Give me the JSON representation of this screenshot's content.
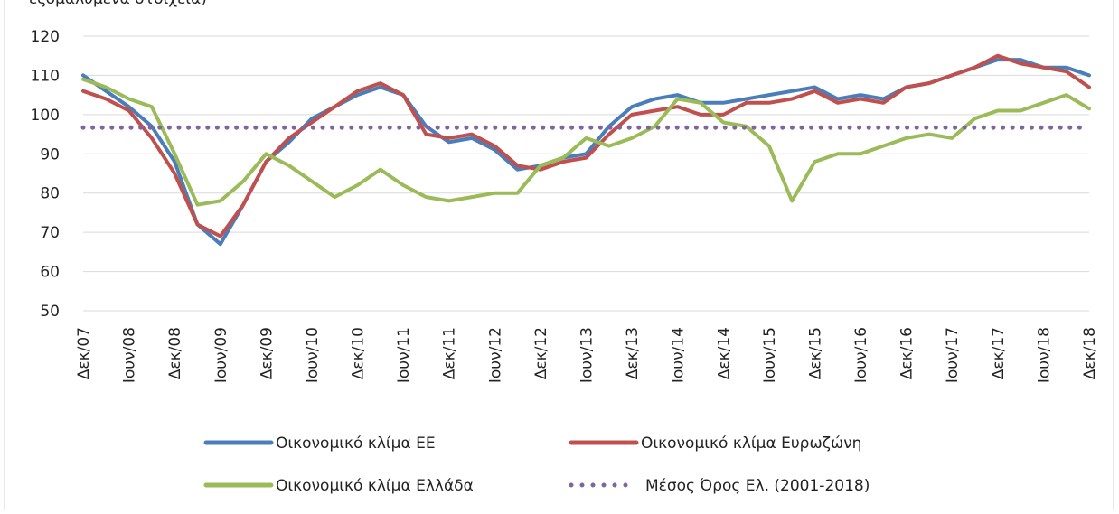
{
  "chart_data": {
    "type": "line",
    "title": "εξομαλυμένα στοιχεία)",
    "categories": [
      "Δεκ/07",
      null,
      "Ιουν/08",
      null,
      "Δεκ/08",
      null,
      "Ιουν/09",
      null,
      "Δεκ/09",
      null,
      "Ιουν/10",
      null,
      "Δεκ/10",
      null,
      "Ιουν/11",
      null,
      "Δεκ/11",
      null,
      "Ιουν/12",
      null,
      "Δεκ/12",
      null,
      "Ιουν/13",
      null,
      "Δεκ/13",
      null,
      "Ιουν/14",
      null,
      "Δεκ/14",
      null,
      "Ιουν/15",
      null,
      "Δεκ/15",
      null,
      "Ιουν/16",
      null,
      "Δεκ/16",
      null,
      "Ιουν/17",
      null,
      "Δεκ/17",
      null,
      "Ιουν/18",
      null,
      "Δεκ/18"
    ],
    "series": [
      {
        "name": "Οικονομικό κλίμα ΕΕ",
        "color": "#4a7ebb",
        "style": "solid",
        "values": [
          110,
          106,
          102,
          97,
          88,
          72,
          67,
          77,
          88,
          93,
          99,
          102,
          105,
          107,
          105,
          97,
          93,
          94,
          91,
          86,
          87,
          89,
          90,
          97,
          102,
          104,
          105,
          103,
          103,
          104,
          105,
          106,
          107,
          104,
          105,
          104,
          107,
          108,
          110,
          112,
          114,
          114,
          112,
          112,
          110
        ]
      },
      {
        "name": "Οικονομικό κλίμα Ευρωζώνη",
        "color": "#c0504d",
        "style": "solid",
        "values": [
          106,
          104,
          101,
          94,
          85,
          72,
          69,
          77,
          88,
          94,
          98,
          102,
          106,
          108,
          105,
          95,
          94,
          95,
          92,
          87,
          86,
          88,
          89,
          95,
          100,
          101,
          102,
          100,
          100,
          103,
          103,
          104,
          106,
          103,
          104,
          103,
          107,
          108,
          110,
          112,
          115,
          113,
          112,
          111,
          107
        ]
      },
      {
        "name": "Οικονομικό κλίμα Ελλάδα",
        "color": "#9bbb59",
        "style": "solid",
        "values": [
          109,
          107,
          104,
          102,
          90,
          77,
          78,
          83,
          90,
          87,
          83,
          79,
          82,
          86,
          82,
          79,
          78,
          79,
          80,
          80,
          87,
          89,
          94,
          92,
          94,
          97,
          104,
          103,
          98,
          97,
          92,
          78,
          88,
          90,
          90,
          92,
          94,
          95,
          94,
          99,
          101,
          101,
          103,
          105,
          101.5
        ]
      },
      {
        "name": "Μέσος Όρος Ελ. (2001-2018)",
        "color": "#8064a2",
        "style": "dotted",
        "values": [
          96.7,
          96.7,
          96.7,
          96.7,
          96.7,
          96.7,
          96.7,
          96.7,
          96.7,
          96.7,
          96.7,
          96.7,
          96.7,
          96.7,
          96.7,
          96.7,
          96.7,
          96.7,
          96.7,
          96.7,
          96.7,
          96.7,
          96.7,
          96.7,
          96.7,
          96.7,
          96.7,
          96.7,
          96.7,
          96.7,
          96.7,
          96.7,
          96.7,
          96.7,
          96.7,
          96.7,
          96.7,
          96.7,
          96.7,
          96.7,
          96.7,
          96.7,
          96.7,
          96.7,
          96.7
        ]
      }
    ],
    "ylim": [
      50,
      120
    ],
    "yticks": [
      50,
      60,
      70,
      80,
      90,
      100,
      110,
      120
    ],
    "grid": true,
    "legend": "bottom"
  }
}
